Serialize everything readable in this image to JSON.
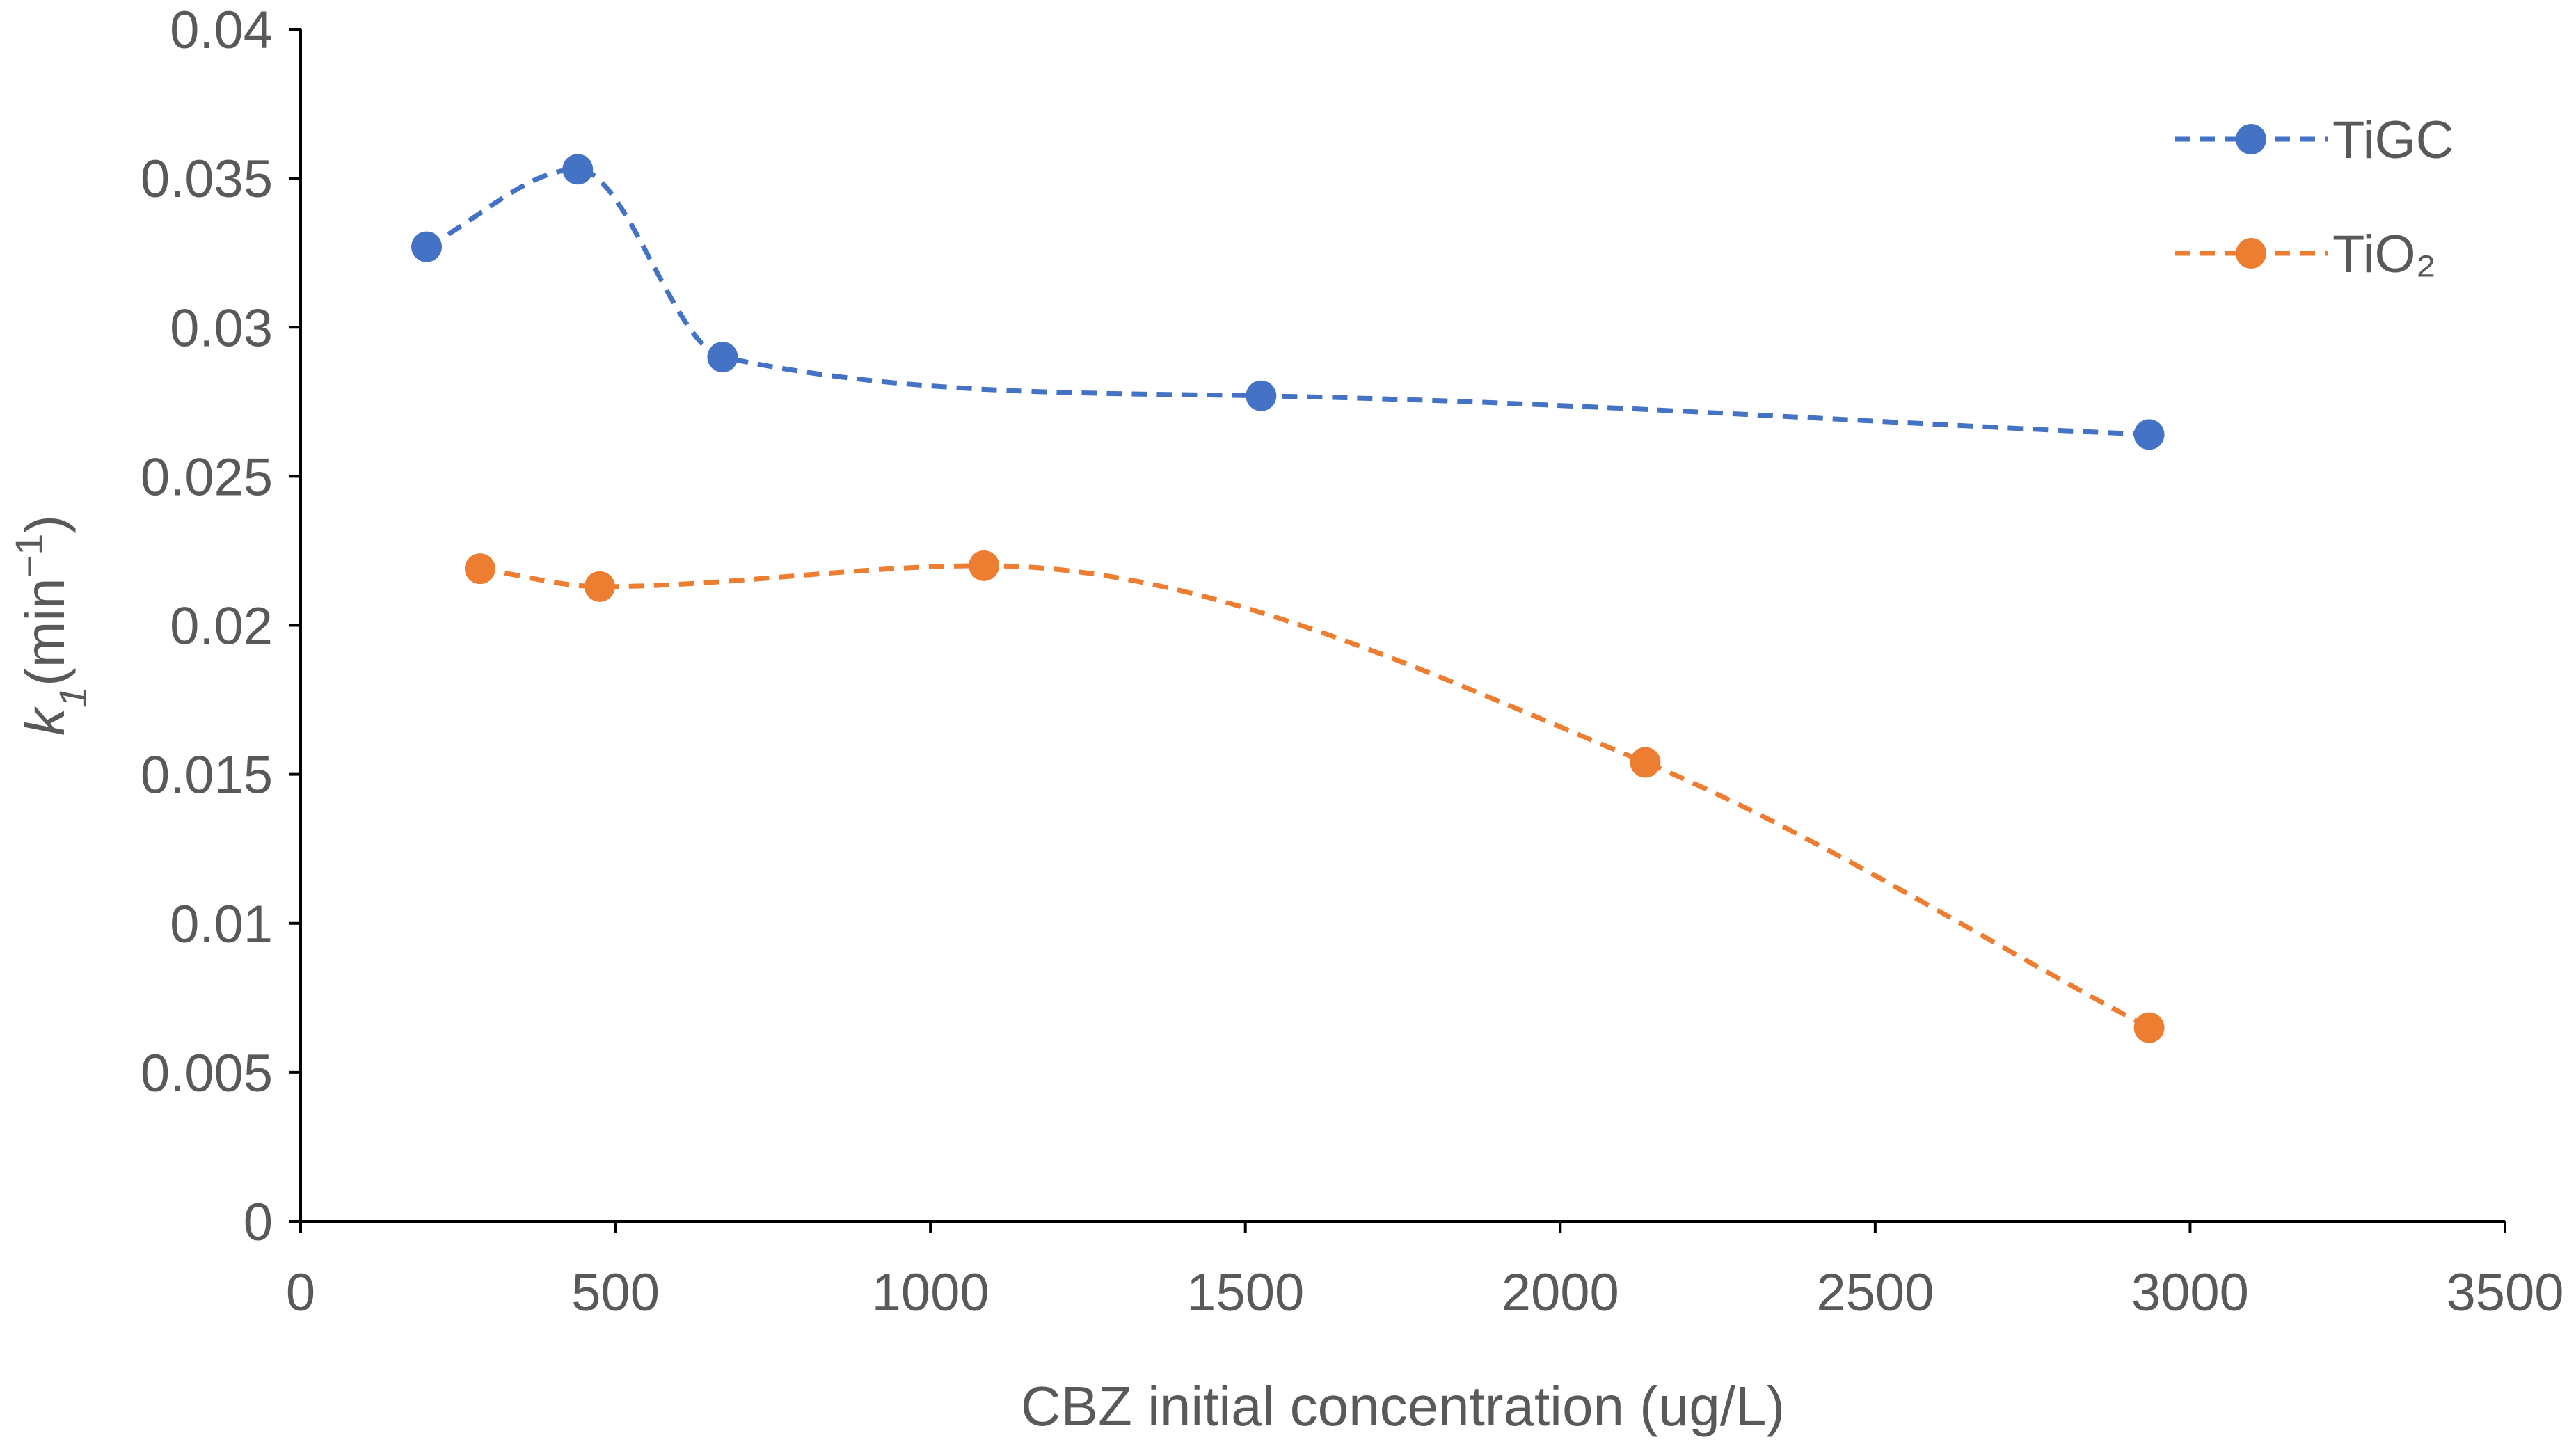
{
  "chart_data": {
    "type": "line",
    "title": "",
    "xlabel": "CBZ initial concentration (ug/L)",
    "ylabel": {
      "var": "k",
      "sub": "1",
      "unit_open": "(min",
      "sup": "−1",
      "unit_close": ")"
    },
    "xlim": [
      0,
      3500
    ],
    "ylim": [
      0,
      0.04
    ],
    "x_ticks": [
      0,
      500,
      1000,
      1500,
      2000,
      2500,
      3000,
      3500
    ],
    "y_ticks": [
      0,
      0.005,
      0.01,
      0.015,
      0.02,
      0.025,
      0.03,
      0.035,
      0.04
    ],
    "x_tick_labels": [
      "0",
      "500",
      "1000",
      "1500",
      "2000",
      "2500",
      "3000",
      "3500"
    ],
    "y_tick_labels": [
      "0",
      "0.005",
      "0.01",
      "0.015",
      "0.02",
      "0.025",
      "0.03",
      "0.035",
      "0.04"
    ],
    "grid": false,
    "legend_position": "top-right",
    "series": [
      {
        "name": "TiGC",
        "color": "#4472C4",
        "line_style": "dashed",
        "smooth": true,
        "marker": "circle",
        "x": [
          200,
          440,
          670,
          1525,
          2935
        ],
        "y": [
          0.0327,
          0.0353,
          0.029,
          0.0277,
          0.0264
        ]
      },
      {
        "name": "TiO₂",
        "color": "#ED7D31",
        "line_style": "dashed",
        "smooth": true,
        "marker": "circle",
        "x": [
          285,
          475,
          1085,
          2135,
          2935
        ],
        "y": [
          0.0219,
          0.0213,
          0.022,
          0.0154,
          0.0065
        ]
      }
    ]
  },
  "colors": {
    "axis": "#000000",
    "text": "#595959"
  }
}
